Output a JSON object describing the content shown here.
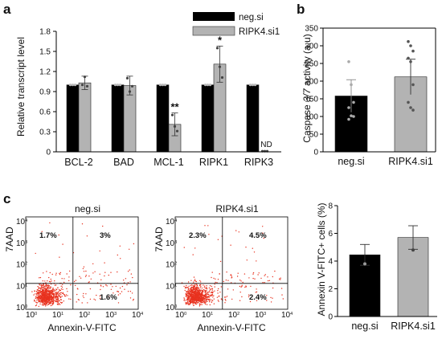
{
  "panels": [
    {
      "label": "a"
    },
    {
      "label": "b"
    },
    {
      "label": "c"
    }
  ],
  "colors": {
    "neg_si": "#000000",
    "ripk4_si1": "#b3b3b3",
    "dots_flow": "#e8321f"
  },
  "chart_data": [
    {
      "id": "a",
      "type": "bar",
      "ylabel": "Relative transcript level",
      "ylim": [
        0,
        1.8
      ],
      "yticks": [
        "0",
        "0.3",
        "0.6",
        "0.9",
        "1.2",
        "1.5",
        "1.8"
      ],
      "categories": [
        "BCL-2",
        "BAD",
        "MCL-1",
        "RIPK1",
        "RIPK3"
      ],
      "series": [
        {
          "name": "neg.si",
          "values": [
            1.0,
            1.0,
            1.0,
            1.0,
            1.0
          ],
          "err": [
            0.01,
            0.01,
            0.01,
            0.01,
            0.01
          ],
          "points": [
            [
              1.0,
              1.0,
              1.0
            ],
            [
              1.0,
              1.0,
              1.0
            ],
            [
              1.0,
              1.0,
              1.0
            ],
            [
              1.0,
              1.0,
              1.0
            ],
            [
              1.0,
              1.0,
              1.0
            ]
          ]
        },
        {
          "name": "RIPK4.si1",
          "values": [
            1.03,
            0.99,
            0.41,
            1.31,
            0.0
          ],
          "err": [
            0.1,
            0.14,
            0.17,
            0.27,
            0.0
          ],
          "points": [
            [
              1.0,
              1.12,
              0.98
            ],
            [
              1.1,
              0.9,
              0.98
            ],
            [
              0.55,
              0.38,
              0.31
            ],
            [
              1.55,
              1.27,
              1.11
            ],
            [
              0.01,
              0.01,
              0.01
            ]
          ]
        }
      ],
      "annotations": [
        {
          "category": "MCL-1",
          "text": "**"
        },
        {
          "category": "RIPK1",
          "text": "*"
        },
        {
          "category": "RIPK3",
          "text": "ND"
        }
      ],
      "legend": "top-right"
    },
    {
      "id": "b",
      "type": "bar",
      "ylabel_pre": "Caspase ",
      "ylabel_italic": "3/7",
      "ylabel_post": " activity (a.u)",
      "ylim": [
        0,
        350
      ],
      "yticks": [
        "0",
        "50",
        "100",
        "150",
        "200",
        "250",
        "300",
        "350"
      ],
      "categories": [
        "neg.si",
        "RIPK4.si1"
      ],
      "values": [
        158,
        212
      ],
      "err": [
        46,
        50
      ],
      "points": [
        [
          255,
          190,
          140,
          125,
          102,
          100,
          92
        ],
        [
          312,
          300,
          285,
          265,
          255,
          190,
          140,
          125,
          118
        ]
      ]
    },
    {
      "id": "c-flow-1",
      "type": "scatter",
      "title": "neg.si",
      "xlabel": "Annexin-V-FITC",
      "ylabel": "7AAD",
      "quadrants": {
        "ul": "1.7%",
        "ur": "3%",
        "lr": "1.6%"
      }
    },
    {
      "id": "c-flow-2",
      "type": "scatter",
      "title": "RIPK4.si1",
      "xlabel": "Annexin-V-FITC",
      "ylabel": "7AAD",
      "quadrants": {
        "ul": "2.3%",
        "ur": "4.5%",
        "lr": "2.4%"
      }
    },
    {
      "id": "c-bar",
      "type": "bar",
      "ylabel": "Annexin V-FITC+ cells (%)",
      "ylim": [
        0,
        8
      ],
      "yticks": [
        "0",
        "2",
        "4",
        "6",
        "8"
      ],
      "categories": [
        "neg.si",
        "RIPK4.si1"
      ],
      "values": [
        4.45,
        5.7
      ],
      "err": [
        0.75,
        0.85
      ],
      "points": [
        [
          3.8
        ],
        [
          4.8
        ]
      ]
    }
  ],
  "flow_axis": {
    "ticks": [
      "10",
      "10",
      "10",
      "10",
      "10"
    ],
    "exponents": [
      "0",
      "1",
      "2",
      "3",
      "4"
    ]
  }
}
